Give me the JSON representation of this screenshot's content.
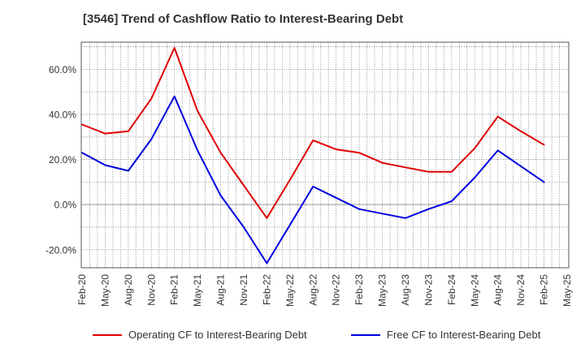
{
  "chart_data": {
    "type": "line",
    "title": "[3546]  Trend of Cashflow Ratio to Interest-Bearing Debt",
    "xlabel": "",
    "ylabel": "",
    "x": [
      "Feb-20",
      "May-20",
      "Aug-20",
      "Nov-20",
      "Feb-21",
      "May-21",
      "Aug-21",
      "Nov-21",
      "Feb-22",
      "May-22",
      "Aug-22",
      "Nov-22",
      "Feb-23",
      "May-23",
      "Aug-23",
      "Nov-23",
      "Feb-24",
      "May-24",
      "Aug-24",
      "Nov-24",
      "Feb-25",
      "May-25"
    ],
    "y_ticks": [
      "-20.0%",
      "0.0%",
      "20.0%",
      "40.0%",
      "60.0%"
    ],
    "y_tick_values": [
      -20,
      0,
      20,
      40,
      60
    ],
    "ylim": [
      -28,
      72
    ],
    "grid": true,
    "legend_position": "bottom",
    "series": [
      {
        "name": "Operating CF to Interest-Bearing Debt",
        "color": "#e00000",
        "values": [
          35.5,
          31.5,
          32.5,
          47.0,
          69.5,
          41.5,
          23.0,
          8.5,
          -6.0,
          11.0,
          28.5,
          24.5,
          23.0,
          18.5,
          16.5,
          14.5,
          14.5,
          25.0,
          39.0,
          32.5,
          26.5,
          null
        ]
      },
      {
        "name": "Free CF to Interest-Bearing Debt",
        "color": "#0000e0",
        "values": [
          23.0,
          17.5,
          15.0,
          29.0,
          48.0,
          24.0,
          4.0,
          -10.0,
          -26.0,
          -9.0,
          8.0,
          3.0,
          -2.0,
          -4.0,
          -6.0,
          -2.0,
          1.5,
          12.0,
          24.0,
          17.0,
          10.0,
          null
        ]
      }
    ]
  }
}
